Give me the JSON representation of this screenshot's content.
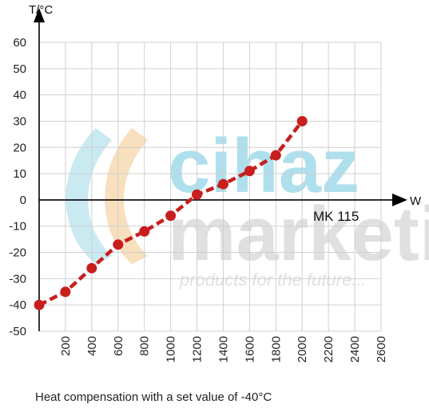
{
  "chart_data": {
    "type": "line",
    "title": "",
    "xlabel": "W",
    "ylabel": "T/°C",
    "xlim": [
      0,
      2600
    ],
    "ylim": [
      -50,
      60
    ],
    "x_ticks": [
      200,
      400,
      600,
      800,
      1000,
      1200,
      1400,
      1600,
      1800,
      2000,
      2200,
      2400,
      2600
    ],
    "y_ticks": [
      60,
      50,
      40,
      30,
      20,
      10,
      0,
      -10,
      -20,
      -30,
      -40,
      -50
    ],
    "grid": true,
    "series": [
      {
        "name": "MK 115",
        "color": "#c81e1e",
        "x": [
          0,
          200,
          400,
          600,
          800,
          1000,
          1200,
          1400,
          1600,
          1800,
          2000
        ],
        "y": [
          -40,
          -35,
          -26,
          -17,
          -12,
          -6,
          2,
          6,
          11,
          17,
          30
        ]
      }
    ],
    "annotations": [
      {
        "text": "MK 115"
      }
    ]
  },
  "caption": "Heat compensation with a set value of -40°C",
  "watermark": {
    "line1": "cihaz",
    "line2": "marketi",
    "tagline": "products for the future..."
  },
  "colors": {
    "line": "#c81e1e",
    "axis": "#000000",
    "grid": "#d0d0d0"
  }
}
